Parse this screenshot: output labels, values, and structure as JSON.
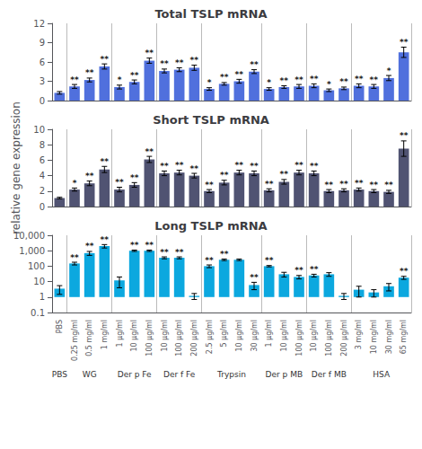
{
  "chart_data": [
    {
      "type": "bar",
      "title": "Total TSLP mRNA",
      "categories": [
        "PBS",
        "0.25 mg/ml",
        "0.5 mg/ml",
        "1 mg/ml",
        "1 μg/ml",
        "10 μg/ml",
        "100 μg/ml",
        "10 μg/ml",
        "100 μg/ml",
        "200 μg/ml",
        "2.5 μg/ml",
        "5 μg/ml",
        "10 μg/ml",
        "30 μg/ml",
        "1 μg/ml",
        "10 μg/ml",
        "100 μg/ml",
        "10 μg/ml",
        "100 μg/ml",
        "200 μg/ml",
        "3 mg/ml",
        "10 mg/ml",
        "30 mg/ml",
        "65 mg/ml"
      ],
      "group_sizes": [
        1,
        3,
        3,
        3,
        4,
        3,
        3,
        4
      ],
      "values": [
        1.2,
        2.2,
        3.2,
        5.3,
        2.1,
        2.9,
        6.2,
        4.6,
        4.8,
        5.1,
        1.8,
        2.6,
        3.0,
        4.5,
        1.8,
        2.1,
        2.2,
        2.3,
        1.6,
        1.9,
        2.3,
        2.2,
        3.5,
        7.5
      ],
      "errors": [
        0.2,
        0.3,
        0.3,
        0.4,
        0.3,
        0.3,
        0.4,
        0.3,
        0.3,
        0.4,
        0.2,
        0.2,
        0.3,
        0.3,
        0.2,
        0.2,
        0.3,
        0.3,
        0.2,
        0.2,
        0.3,
        0.3,
        0.4,
        0.8
      ],
      "annotations": [
        null,
        "**",
        "**",
        "**",
        "*",
        "**",
        "**",
        "**",
        "**",
        "**",
        "*",
        "**",
        "**",
        "**",
        "*",
        "**",
        "**",
        "**",
        "*",
        "**",
        "**",
        "**",
        "*",
        "**"
      ],
      "ylim": [
        0,
        12
      ],
      "yticks": [
        0,
        3,
        6,
        9,
        12
      ],
      "grid": false,
      "tick_labels": "y"
    },
    {
      "type": "bar",
      "title": "Short TSLP mRNA",
      "ylabel": "relative gene expression",
      "categories": [
        "PBS",
        "0.25 mg/ml",
        "0.5 mg/ml",
        "1 mg/ml",
        "1 μg/ml",
        "10 μg/ml",
        "100 μg/ml",
        "10 μg/ml",
        "100 μg/ml",
        "200 μg/ml",
        "2.5 μg/ml",
        "5 μg/ml",
        "10 μg/ml",
        "30 μg/ml",
        "1 μg/ml",
        "10 μg/ml",
        "100 μg/ml",
        "10 μg/ml",
        "100 μg/ml",
        "200 μg/ml",
        "3 mg/ml",
        "10 mg/ml",
        "30 mg/ml",
        "65 mg/ml"
      ],
      "group_sizes": [
        1,
        3,
        3,
        3,
        4,
        3,
        3,
        4
      ],
      "values": [
        1.1,
        2.2,
        3.0,
        4.8,
        2.2,
        2.8,
        6.1,
        4.3,
        4.4,
        4.0,
        2.0,
        3.1,
        4.4,
        4.3,
        2.1,
        3.2,
        4.4,
        4.3,
        2.0,
        2.1,
        2.2,
        2.0,
        1.9,
        7.5
      ],
      "errors": [
        0.1,
        0.2,
        0.3,
        0.4,
        0.3,
        0.3,
        0.4,
        0.3,
        0.3,
        0.3,
        0.2,
        0.3,
        0.3,
        0.3,
        0.2,
        0.3,
        0.3,
        0.3,
        0.2,
        0.2,
        0.2,
        0.2,
        0.2,
        1.0
      ],
      "annotations": [
        null,
        "*",
        "**",
        "**",
        "**",
        "**",
        "**",
        "**",
        "**",
        "**",
        "**",
        "**",
        "**",
        "**",
        "**",
        "**",
        "**",
        "**",
        "**",
        "**",
        "**",
        "**",
        "**",
        "**"
      ],
      "ylim": [
        0,
        10
      ],
      "yticks": [
        0,
        2,
        4,
        6,
        8,
        10
      ],
      "grid": false,
      "tick_labels": "y"
    },
    {
      "type": "bar",
      "title": "Long TSLP mRNA",
      "categories": [
        "PBS",
        "0.25 mg/ml",
        "0.5 mg/ml",
        "1 mg/ml",
        "1 μg/ml",
        "10 μg/ml",
        "100 μg/ml",
        "10 μg/ml",
        "100 μg/ml",
        "200 μg/ml",
        "2.5 μg/ml",
        "5 μg/ml",
        "10 μg/ml",
        "30 μg/ml",
        "1 μg/ml",
        "10 μg/ml",
        "100 μg/ml",
        "10 μg/ml",
        "100 μg/ml",
        "200 μg/ml",
        "3 mg/ml",
        "10 mg/ml",
        "30 mg/ml",
        "65 mg/ml"
      ],
      "groups": [
        "PBS",
        "WG",
        "Der p Fe",
        "Der f Fe",
        "Trypsin",
        "Der p MB",
        "Der f MB",
        "HSA"
      ],
      "group_sizes": [
        1,
        3,
        3,
        3,
        4,
        3,
        3,
        4
      ],
      "values": [
        3.5,
        150,
        700,
        2000,
        12,
        1000,
        1000,
        350,
        350,
        1.2,
        100,
        260,
        260,
        6,
        100,
        30,
        20,
        25,
        30,
        1.2,
        3.0,
        2.0,
        5.0,
        18.0
      ],
      "errors": [
        2.0,
        30,
        200,
        500,
        8,
        100,
        100,
        50,
        50,
        0.5,
        20,
        30,
        30,
        3,
        10,
        10,
        5,
        5,
        8,
        0.5,
        2.0,
        1.0,
        2.5,
        4.0
      ],
      "annotations": [
        null,
        "**",
        "**",
        "**",
        null,
        "**",
        "**",
        "**",
        "**",
        null,
        "**",
        "**",
        null,
        "**",
        "**",
        null,
        "**",
        "**",
        null,
        null,
        null,
        null,
        null,
        "**"
      ],
      "log": "y",
      "ylim": [
        0.1,
        10000
      ],
      "yticks": [
        0.1,
        1,
        10,
        100,
        {
          "value": 1000,
          "label": "1,000"
        },
        {
          "value": 10000,
          "label": "10,000"
        }
      ],
      "grid": false
    }
  ]
}
